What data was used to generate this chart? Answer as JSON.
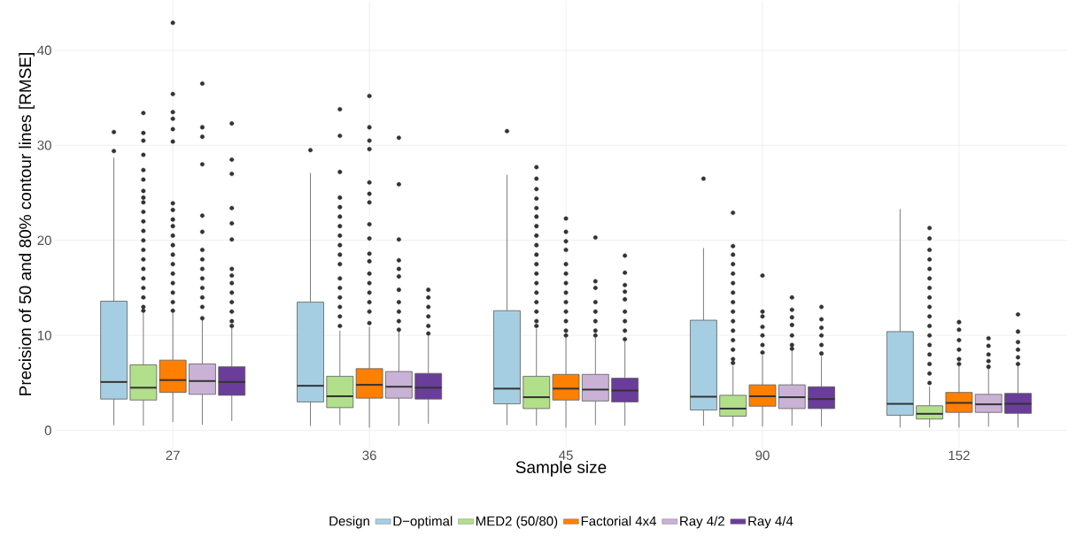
{
  "chart_data": {
    "type": "box",
    "xlabel": "Sample size",
    "ylabel": "Precision of 50 and 80% contour lines [RMSE]",
    "legend_title": "Design",
    "categories": [
      "27",
      "36",
      "45",
      "90",
      "152"
    ],
    "ylim": [
      -1.8,
      45.2
    ],
    "yticks": [
      0,
      10,
      20,
      30,
      40
    ],
    "grid": true,
    "legend": "bottom",
    "series": [
      {
        "name": "D−optimal",
        "color": "#a6cee3",
        "boxes": [
          {
            "low": 0.55,
            "q1": 3.3,
            "median": 5.1,
            "q3": 13.6,
            "high": 28.7,
            "outliers": [
              31.4,
              29.4
            ]
          },
          {
            "low": 0.47,
            "q1": 3.0,
            "median": 4.7,
            "q3": 13.5,
            "high": 27.1,
            "outliers": [
              29.5
            ]
          },
          {
            "low": 0.56,
            "q1": 2.8,
            "median": 4.4,
            "q3": 12.6,
            "high": 26.9,
            "outliers": [
              31.5
            ]
          },
          {
            "low": 0.5,
            "q1": 2.15,
            "median": 3.55,
            "q3": 11.6,
            "high": 19.2,
            "outliers": [
              26.5
            ]
          },
          {
            "low": 0.3,
            "q1": 1.6,
            "median": 2.8,
            "q3": 10.4,
            "high": 23.3
          }
        ]
      },
      {
        "name": "MED2 (50/80)",
        "color": "#b2df8a",
        "boxes": [
          {
            "low": 0.5,
            "q1": 3.2,
            "median": 4.5,
            "q3": 6.9,
            "high": 12.4,
            "outliers": [
              33.4,
              31.3,
              30.5,
              29.0,
              27.4,
              26.4,
              25.2,
              24.5,
              24.0,
              23.0,
              22.0,
              21.0,
              20.0,
              19.0,
              18.0,
              17.0,
              16.0,
              15.0,
              14.0,
              13.0,
              12.6
            ]
          },
          {
            "low": 0.56,
            "q1": 2.4,
            "median": 3.6,
            "q3": 5.7,
            "high": 10.5,
            "outliers": [
              33.8,
              31.0,
              27.2,
              24.5,
              23.5,
              22.5,
              21.5,
              20.5,
              19.5,
              18.5,
              17.5,
              16.0,
              15.0,
              14.0,
              13.0,
              12.0,
              11.0
            ]
          },
          {
            "low": 0.5,
            "q1": 2.3,
            "median": 3.5,
            "q3": 5.7,
            "high": 10.7,
            "outliers": [
              27.7,
              26.5,
              25.4,
              24.4,
              23.4,
              22.5,
              21.5,
              20.5,
              19.5,
              18.5,
              17.5,
              16.5,
              15.5,
              14.5,
              13.5,
              12.5,
              11.5,
              11.0
            ]
          },
          {
            "low": 0.4,
            "q1": 1.5,
            "median": 2.3,
            "q3": 3.7,
            "high": 6.8,
            "outliers": [
              22.9,
              19.4,
              18.5,
              17.5,
              16.5,
              15.5,
              14.5,
              13.5,
              12.5,
              11.5,
              10.5,
              9.5,
              8.5,
              7.5,
              7.1
            ]
          },
          {
            "low": 0.3,
            "q1": 1.2,
            "median": 1.75,
            "q3": 2.6,
            "high": 4.6,
            "outliers": [
              21.3,
              20.2,
              19.0,
              18.0,
              17.0,
              16.0,
              15.0,
              14.0,
              13.0,
              12.0,
              11.0,
              10.0,
              9.0,
              8.0,
              7.0,
              6.0,
              5.0
            ]
          }
        ]
      },
      {
        "name": "Factorial 4x4",
        "color": "#ff7f00",
        "boxes": [
          {
            "low": 0.9,
            "q1": 4.0,
            "median": 5.3,
            "q3": 7.4,
            "high": 12.4,
            "outliers": [
              42.9,
              35.4,
              33.5,
              32.8,
              31.7,
              30.4,
              23.9,
              23.2,
              22.2,
              21.5,
              20.5,
              19.5,
              18.5,
              17.5,
              16.5,
              15.5,
              14.5,
              13.5,
              12.6
            ]
          },
          {
            "low": 0.3,
            "q1": 3.4,
            "median": 4.8,
            "q3": 6.5,
            "high": 10.9,
            "outliers": [
              35.2,
              31.9,
              30.5,
              29.6,
              26.1,
              24.9,
              24.0,
              21.7,
              20.2,
              18.6,
              17.8,
              16.5,
              15.5,
              14.5,
              13.5,
              12.5,
              11.3
            ]
          },
          {
            "low": 0.3,
            "q1": 3.2,
            "median": 4.4,
            "q3": 5.9,
            "high": 9.8,
            "outliers": [
              22.3,
              20.9,
              19.9,
              19.0,
              17.5,
              16.5,
              15.5,
              14.5,
              13.5,
              12.5,
              11.5,
              10.5,
              10.0
            ]
          },
          {
            "low": 0.4,
            "q1": 2.55,
            "median": 3.6,
            "q3": 4.8,
            "high": 7.9,
            "outliers": [
              16.3,
              12.5,
              12.0,
              10.9,
              10.0,
              9.0,
              8.2
            ]
          },
          {
            "low": 0.3,
            "q1": 1.9,
            "median": 2.9,
            "q3": 4.0,
            "high": 6.9,
            "outliers": [
              11.4,
              10.6,
              9.5,
              8.5,
              7.5,
              7.0
            ]
          }
        ]
      },
      {
        "name": "Ray 4/2",
        "color": "#cab2d6",
        "boxes": [
          {
            "low": 0.6,
            "q1": 3.8,
            "median": 5.2,
            "q3": 7.0,
            "high": 11.6,
            "outliers": [
              36.5,
              31.9,
              30.9,
              28.0,
              22.6,
              20.9,
              19.0,
              18.0,
              17.0,
              16.0,
              15.0,
              14.0,
              13.0,
              11.8
            ]
          },
          {
            "low": 0.5,
            "q1": 3.4,
            "median": 4.6,
            "q3": 6.2,
            "high": 10.4,
            "outliers": [
              30.8,
              25.9,
              20.1,
              17.9,
              17.0,
              16.2,
              14.8,
              13.5,
              12.5,
              11.5,
              10.6
            ]
          },
          {
            "low": 0.56,
            "q1": 3.1,
            "median": 4.3,
            "q3": 5.9,
            "high": 9.8,
            "outliers": [
              20.3,
              15.7,
              15.0,
              13.5,
              12.5,
              11.5,
              10.5,
              10.0
            ]
          },
          {
            "low": 0.5,
            "q1": 2.3,
            "median": 3.5,
            "q3": 4.8,
            "high": 8.4,
            "outliers": [
              14.0,
              12.7,
              11.9,
              11.1,
              10.0,
              9.0,
              8.6
            ]
          },
          {
            "low": 0.4,
            "q1": 1.9,
            "median": 2.75,
            "q3": 3.8,
            "high": 6.5,
            "outliers": [
              9.7,
              8.9,
              8.0,
              7.3,
              6.7
            ]
          }
        ]
      },
      {
        "name": "Ray 4/4",
        "color": "#6a3d9a",
        "boxes": [
          {
            "low": 1.0,
            "q1": 3.7,
            "median": 5.1,
            "q3": 6.7,
            "high": 10.8,
            "outliers": [
              32.3,
              28.5,
              27.0,
              23.4,
              21.8,
              20.1,
              17.0,
              16.3,
              15.5,
              14.5,
              13.5,
              12.5,
              11.5,
              11.0
            ]
          },
          {
            "low": 0.7,
            "q1": 3.3,
            "median": 4.5,
            "q3": 6.0,
            "high": 10.0,
            "outliers": [
              14.8,
              14.0,
              13.0,
              12.0,
              11.0,
              10.2
            ]
          },
          {
            "low": 0.5,
            "q1": 3.0,
            "median": 4.2,
            "q3": 5.5,
            "high": 9.4,
            "outliers": [
              18.4,
              16.6,
              15.3,
              14.6,
              13.8,
              12.5,
              11.5,
              10.5,
              9.6
            ]
          },
          {
            "low": 0.4,
            "q1": 2.3,
            "median": 3.3,
            "q3": 4.6,
            "high": 7.8,
            "outliers": [
              13.0,
              11.7,
              10.8,
              10.0,
              9.0,
              8.1
            ]
          },
          {
            "low": 0.3,
            "q1": 1.8,
            "median": 2.8,
            "q3": 3.9,
            "high": 6.85,
            "outliers": [
              12.2,
              10.4,
              9.3,
              8.5,
              7.7,
              7.0
            ]
          }
        ]
      }
    ]
  }
}
